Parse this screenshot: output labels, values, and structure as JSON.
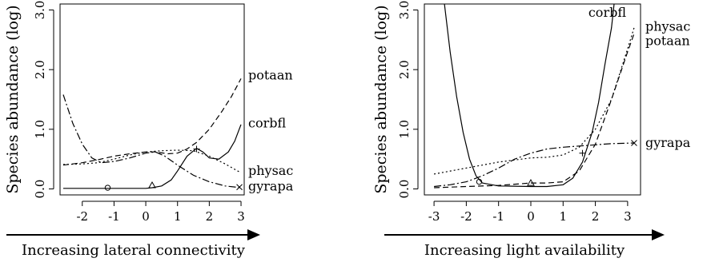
{
  "chart_data": [
    {
      "type": "line",
      "ylabel": "Species abundance (log)",
      "xlabel": "Increasing lateral connectivity",
      "xlim": [
        -2.7,
        3.1
      ],
      "ylim": [
        -0.1,
        3.1
      ],
      "xticks": [
        -2,
        -1,
        0,
        1,
        2,
        3
      ],
      "yticks": [
        0.0,
        1.0,
        2.0,
        3.0
      ],
      "ytick_labels": [
        "0.0",
        "1.0",
        "2.0",
        "3.0"
      ],
      "grid": false,
      "series": [
        {
          "name": "potaan",
          "dash": "7,4",
          "marker": "none",
          "points": [
            [
              -2.6,
              0.4
            ],
            [
              -2.0,
              0.44
            ],
            [
              -1.5,
              0.49
            ],
            [
              -1.0,
              0.55
            ],
            [
              -0.5,
              0.59
            ],
            [
              0.0,
              0.62
            ],
            [
              0.3,
              0.62
            ],
            [
              0.7,
              0.59
            ],
            [
              1.0,
              0.6
            ],
            [
              1.3,
              0.67
            ],
            [
              1.6,
              0.78
            ],
            [
              2.0,
              1.0
            ],
            [
              2.4,
              1.3
            ],
            [
              2.7,
              1.55
            ],
            [
              3.0,
              1.85
            ]
          ]
        },
        {
          "name": "corbfl",
          "dash": "",
          "marker": "none",
          "points": [
            [
              -2.6,
              0.01
            ],
            [
              -2.0,
              0.01
            ],
            [
              -1.0,
              0.01
            ],
            [
              0.0,
              0.01
            ],
            [
              0.2,
              0.02
            ],
            [
              0.5,
              0.05
            ],
            [
              0.8,
              0.15
            ],
            [
              1.0,
              0.3
            ],
            [
              1.3,
              0.55
            ],
            [
              1.6,
              0.68
            ],
            [
              1.8,
              0.62
            ],
            [
              2.0,
              0.52
            ],
            [
              2.3,
              0.5
            ],
            [
              2.6,
              0.62
            ],
            [
              2.8,
              0.8
            ],
            [
              3.0,
              1.08
            ]
          ]
        },
        {
          "name": "physac",
          "dash": "2,3",
          "marker": "none",
          "points": [
            [
              -2.6,
              0.41
            ],
            [
              -2.0,
              0.42
            ],
            [
              -1.5,
              0.44
            ],
            [
              -1.0,
              0.5
            ],
            [
              -0.5,
              0.57
            ],
            [
              0.0,
              0.62
            ],
            [
              0.5,
              0.64
            ],
            [
              1.0,
              0.65
            ],
            [
              1.5,
              0.64
            ],
            [
              2.0,
              0.55
            ],
            [
              2.5,
              0.42
            ],
            [
              3.0,
              0.27
            ]
          ]
        },
        {
          "name": "gyrapa",
          "dash": "9,3,2,3",
          "marker": "none",
          "points": [
            [
              -2.6,
              1.58
            ],
            [
              -2.3,
              1.1
            ],
            [
              -2.0,
              0.75
            ],
            [
              -1.7,
              0.52
            ],
            [
              -1.4,
              0.44
            ],
            [
              -1.0,
              0.46
            ],
            [
              -0.5,
              0.52
            ],
            [
              0.0,
              0.6
            ],
            [
              0.3,
              0.62
            ],
            [
              0.6,
              0.55
            ],
            [
              1.0,
              0.4
            ],
            [
              1.5,
              0.23
            ],
            [
              2.0,
              0.12
            ],
            [
              2.5,
              0.05
            ],
            [
              3.0,
              0.02
            ]
          ]
        }
      ],
      "markers": [
        {
          "symbol": "circle",
          "x": -1.2,
          "y": 0.02
        },
        {
          "symbol": "triangle",
          "x": 0.2,
          "y": 0.06
        },
        {
          "symbol": "plus",
          "x": 1.6,
          "y": 0.67
        },
        {
          "symbol": "cross",
          "x": 2.95,
          "y": 0.03
        }
      ],
      "labels": [
        {
          "text": "potaan",
          "y": 1.9
        },
        {
          "text": "corbfl",
          "y": 1.1
        },
        {
          "text": "physac",
          "y": 0.3
        },
        {
          "text": "gyrapa",
          "y": 0.04
        }
      ]
    },
    {
      "type": "line",
      "ylabel": "Species abundance (log)",
      "xlabel": "Increasing light availability",
      "xlim": [
        -3.3,
        3.4
      ],
      "ylim": [
        -0.1,
        3.1
      ],
      "xticks": [
        -3,
        -2,
        -1,
        0,
        1,
        2,
        3
      ],
      "yticks": [
        0.0,
        1.0,
        2.0,
        3.0
      ],
      "ytick_labels": [
        "0.0",
        "1.0",
        "2.0",
        "3.0"
      ],
      "grid": false,
      "series": [
        {
          "name": "corbfl",
          "dash": "",
          "marker": "none",
          "points": [
            [
              -2.7,
              3.2
            ],
            [
              -2.5,
              2.3
            ],
            [
              -2.3,
              1.55
            ],
            [
              -2.1,
              0.95
            ],
            [
              -1.9,
              0.5
            ],
            [
              -1.7,
              0.22
            ],
            [
              -1.5,
              0.1
            ],
            [
              -1.0,
              0.05
            ],
            [
              0.0,
              0.04
            ],
            [
              0.5,
              0.04
            ],
            [
              1.0,
              0.07
            ],
            [
              1.3,
              0.18
            ],
            [
              1.6,
              0.45
            ],
            [
              1.9,
              0.95
            ],
            [
              2.1,
              1.45
            ],
            [
              2.3,
              2.1
            ],
            [
              2.5,
              2.7
            ],
            [
              2.6,
              3.2
            ]
          ]
        },
        {
          "name": "physac",
          "dash": "2,3",
          "marker": "none",
          "points": [
            [
              -3.0,
              0.25
            ],
            [
              -2.0,
              0.35
            ],
            [
              -1.0,
              0.45
            ],
            [
              0.0,
              0.52
            ],
            [
              0.5,
              0.53
            ],
            [
              1.0,
              0.57
            ],
            [
              1.5,
              0.7
            ],
            [
              2.0,
              1.0
            ],
            [
              2.5,
              1.5
            ],
            [
              3.0,
              2.35
            ],
            [
              3.2,
              2.7
            ]
          ]
        },
        {
          "name": "potaan",
          "dash": "7,4",
          "marker": "none",
          "points": [
            [
              -3.0,
              0.02
            ],
            [
              -2.0,
              0.04
            ],
            [
              -1.0,
              0.06
            ],
            [
              0.0,
              0.1
            ],
            [
              0.5,
              0.1
            ],
            [
              1.0,
              0.12
            ],
            [
              1.5,
              0.3
            ],
            [
              2.0,
              0.75
            ],
            [
              2.5,
              1.5
            ],
            [
              3.0,
              2.3
            ],
            [
              3.2,
              2.6
            ]
          ]
        },
        {
          "name": "gyrapa",
          "dash": "9,3,2,3",
          "marker": "none",
          "points": [
            [
              -3.0,
              0.04
            ],
            [
              -2.5,
              0.07
            ],
            [
              -2.0,
              0.12
            ],
            [
              -1.5,
              0.22
            ],
            [
              -1.0,
              0.35
            ],
            [
              -0.5,
              0.5
            ],
            [
              0.0,
              0.6
            ],
            [
              0.5,
              0.67
            ],
            [
              1.0,
              0.7
            ],
            [
              1.5,
              0.72
            ],
            [
              2.0,
              0.74
            ],
            [
              2.5,
              0.76
            ],
            [
              3.2,
              0.77
            ]
          ]
        }
      ],
      "markers": [
        {
          "symbol": "circle",
          "x": -1.6,
          "y": 0.12
        },
        {
          "symbol": "triangle",
          "x": 0.0,
          "y": 0.1
        },
        {
          "symbol": "plus",
          "x": 1.6,
          "y": 0.6
        },
        {
          "symbol": "cross",
          "x": 3.2,
          "y": 0.77
        }
      ],
      "labels": [
        {
          "text": "corbfl",
          "y": 2.95
        },
        {
          "text": "physac",
          "y": 2.72
        },
        {
          "text": "potaan",
          "y": 2.48
        },
        {
          "text": "gyrapa",
          "y": 0.77
        }
      ]
    }
  ]
}
